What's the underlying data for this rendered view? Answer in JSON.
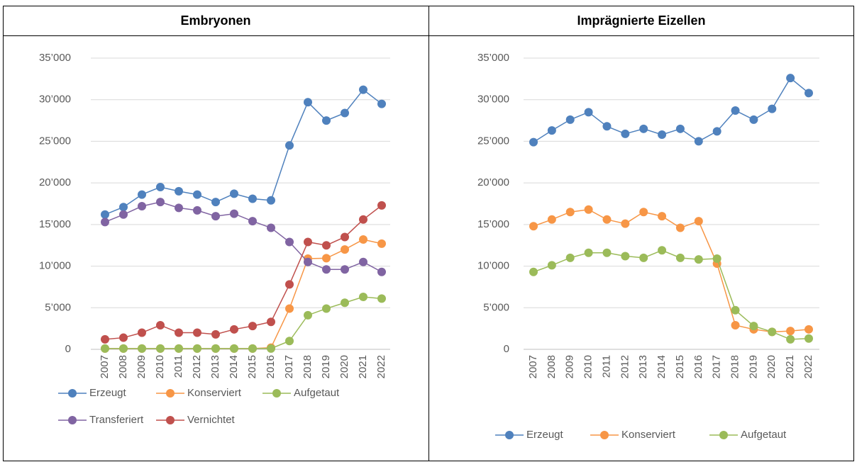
{
  "chart_data": [
    {
      "type": "line",
      "title": "Embryonen",
      "categories": [
        "2007",
        "2008",
        "2009",
        "2010",
        "2011",
        "2012",
        "2013",
        "2014",
        "2015",
        "2016",
        "2017",
        "2018",
        "2019",
        "2020",
        "2021",
        "2022"
      ],
      "ylim": [
        0,
        35000
      ],
      "yticks": [
        0,
        {
          "value": 5000,
          "label": "5’000"
        },
        {
          "value": 10000,
          "label": "10’000"
        },
        {
          "value": 15000,
          "label": "15’000"
        },
        {
          "value": 20000,
          "label": "20’000"
        },
        {
          "value": 25000,
          "label": "25’000"
        },
        {
          "value": 30000,
          "label": "30’000"
        },
        {
          "value": 35000,
          "label": "35’000"
        }
      ],
      "grid": true,
      "series": [
        {
          "name": "Erzeugt",
          "color": "#4f81bd",
          "values": [
            16200,
            17100,
            18600,
            19500,
            19000,
            18600,
            17700,
            18700,
            18100,
            17900,
            24500,
            29700,
            27500,
            28400,
            31200,
            29500
          ]
        },
        {
          "name": "Konserviert",
          "color": "#f79646",
          "values": [
            100,
            100,
            100,
            100,
            100,
            100,
            100,
            100,
            100,
            200,
            4900,
            10900,
            10950,
            12000,
            13200,
            12700
          ]
        },
        {
          "name": "Aufgetaut",
          "color": "#9bbb59",
          "values": [
            100,
            100,
            100,
            100,
            100,
            100,
            100,
            100,
            100,
            100,
            1000,
            4100,
            4900,
            5600,
            6300,
            6100
          ]
        },
        {
          "name": "Transferiert",
          "color": "#8064a2",
          "values": [
            15300,
            16200,
            17200,
            17700,
            17000,
            16700,
            16000,
            16300,
            15400,
            14600,
            12900,
            10500,
            9600,
            9600,
            10500,
            9300
          ]
        },
        {
          "name": "Vernichtet",
          "color": "#c0504d",
          "values": [
            1200,
            1400,
            2000,
            2900,
            2000,
            2000,
            1800,
            2400,
            2800,
            3300,
            7800,
            12900,
            12500,
            13500,
            15600,
            17300
          ]
        }
      ]
    },
    {
      "type": "line",
      "title": "Imprägnierte Eizellen",
      "categories": [
        "2007",
        "2008",
        "2009",
        "2010",
        "2011",
        "2012",
        "2013",
        "2014",
        "2015",
        "2016",
        "2017",
        "2018",
        "2019",
        "2020",
        "2021",
        "2022"
      ],
      "ylim": [
        0,
        35000
      ],
      "yticks": [
        0,
        {
          "value": 5000,
          "label": "5’000"
        },
        {
          "value": 10000,
          "label": "10’000"
        },
        {
          "value": 15000,
          "label": "15’000"
        },
        {
          "value": 20000,
          "label": "20’000"
        },
        {
          "value": 25000,
          "label": "25’000"
        },
        {
          "value": 30000,
          "label": "30’000"
        },
        {
          "value": 35000,
          "label": "35’000"
        }
      ],
      "grid": true,
      "series": [
        {
          "name": "Erzeugt",
          "color": "#4f81bd",
          "values": [
            24900,
            26300,
            27600,
            28500,
            26800,
            25900,
            26500,
            25800,
            26500,
            25000,
            26200,
            28700,
            27600,
            28900,
            32600,
            30800
          ]
        },
        {
          "name": "Konserviert",
          "color": "#f79646",
          "values": [
            14800,
            15600,
            16500,
            16800,
            15600,
            15100,
            16500,
            16000,
            14600,
            15400,
            10300,
            2900,
            2400,
            2100,
            2200,
            2400
          ]
        },
        {
          "name": "Aufgetaut",
          "color": "#9bbb59",
          "values": [
            9300,
            10100,
            11000,
            11600,
            11600,
            11200,
            11000,
            11900,
            11000,
            10800,
            10900,
            4700,
            2800,
            2100,
            1200,
            1300
          ]
        }
      ]
    }
  ]
}
